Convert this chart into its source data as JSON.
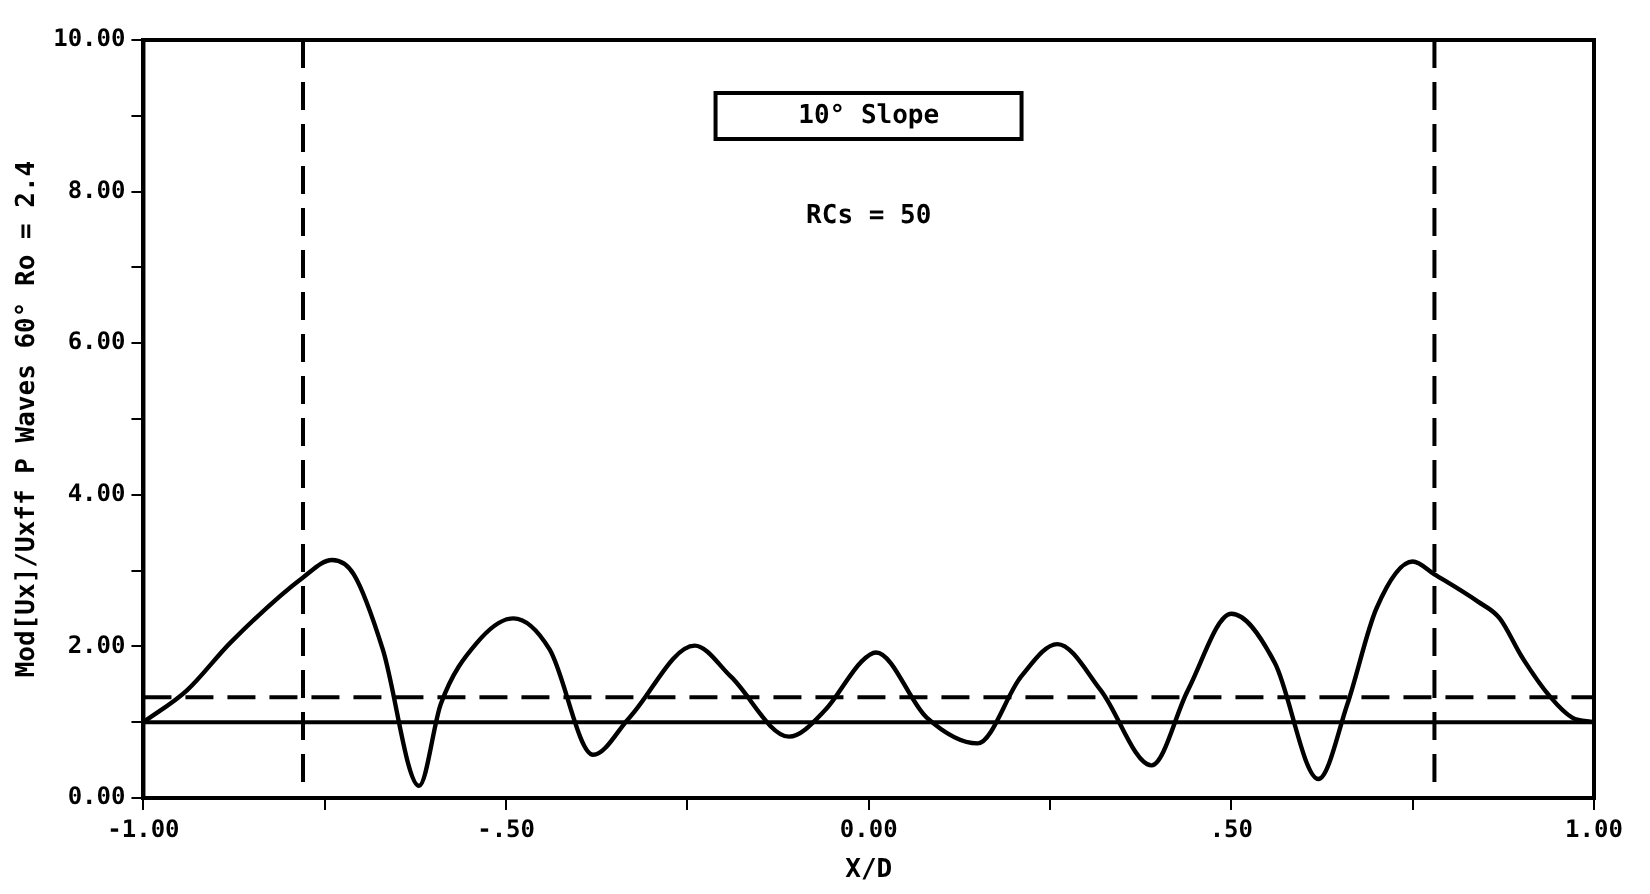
{
  "chart_data": {
    "type": "line",
    "xlabel": "X/D",
    "ylabel": "Mod[Ux]/Uxff P Waves 60° Ro = 2.4",
    "x": [
      -1.0,
      -0.94,
      -0.88,
      -0.78,
      -0.74,
      -0.71,
      -0.67,
      -0.62,
      -0.59,
      -0.54,
      -0.49,
      -0.44,
      -0.38,
      -0.33,
      -0.24,
      -0.19,
      -0.11,
      -0.06,
      -0.01,
      0.01,
      0.08,
      0.15,
      0.21,
      0.26,
      0.32,
      0.39,
      0.44,
      0.5,
      0.56,
      0.62,
      0.66,
      0.7,
      0.75,
      0.78,
      0.84,
      0.87,
      0.9,
      0.94,
      0.97,
      1.0
    ],
    "series": [
      {
        "color": "#000000",
        "values": [
          1.0,
          1.42,
          2.05,
          2.91,
          3.14,
          2.95,
          1.96,
          0.16,
          1.24,
          2.05,
          2.37,
          1.96,
          0.57,
          1.06,
          2.01,
          1.6,
          0.81,
          1.16,
          1.8,
          1.92,
          1.06,
          0.72,
          1.6,
          2.03,
          1.42,
          0.43,
          1.42,
          2.43,
          1.78,
          0.25,
          1.24,
          2.5,
          3.12,
          2.95,
          2.59,
          2.37,
          1.87,
          1.33,
          1.06,
          1.0
        ]
      }
    ],
    "xlim": [
      -1,
      1
    ],
    "xticks": [
      {
        "value": -1,
        "label": "-1.00"
      },
      {
        "value": -0.75,
        "label": null
      },
      {
        "value": -0.5,
        "label": "-.50"
      },
      {
        "value": -0.25,
        "label": null
      },
      {
        "value": 0,
        "label": "0.00"
      },
      {
        "value": 0.25,
        "label": null
      },
      {
        "value": 0.5,
        "label": ".50"
      },
      {
        "value": 0.75,
        "label": null
      },
      {
        "value": 1,
        "label": "1.00"
      }
    ],
    "ylim": [
      0,
      10
    ],
    "yticks": [
      {
        "value": 0,
        "label": "0.00"
      },
      {
        "value": 1,
        "label": null
      },
      {
        "value": 2,
        "label": "2.00"
      },
      {
        "value": 3,
        "label": null
      },
      {
        "value": 4,
        "label": "4.00"
      },
      {
        "value": 5,
        "label": null
      },
      {
        "value": 6,
        "label": "6.00"
      },
      {
        "value": 7,
        "label": null
      },
      {
        "value": 8,
        "label": "8.00"
      },
      {
        "value": 9,
        "label": null
      },
      {
        "value": 10,
        "label": "10.00"
      }
    ],
    "ref_lines": [
      {
        "axis": "x",
        "value": -0.78,
        "line_style": "dashed"
      },
      {
        "axis": "x",
        "value": 0.78,
        "line_style": "dashed"
      },
      {
        "axis": "y",
        "value": 1.0,
        "line_style": "solid"
      },
      {
        "axis": "y",
        "value": 1.33,
        "line_style": "dashed"
      }
    ],
    "annotations": [
      "10° Slope",
      "RCs = 50"
    ],
    "grid": false,
    "legend": false,
    "marker": "none",
    "line_style": "solid"
  }
}
